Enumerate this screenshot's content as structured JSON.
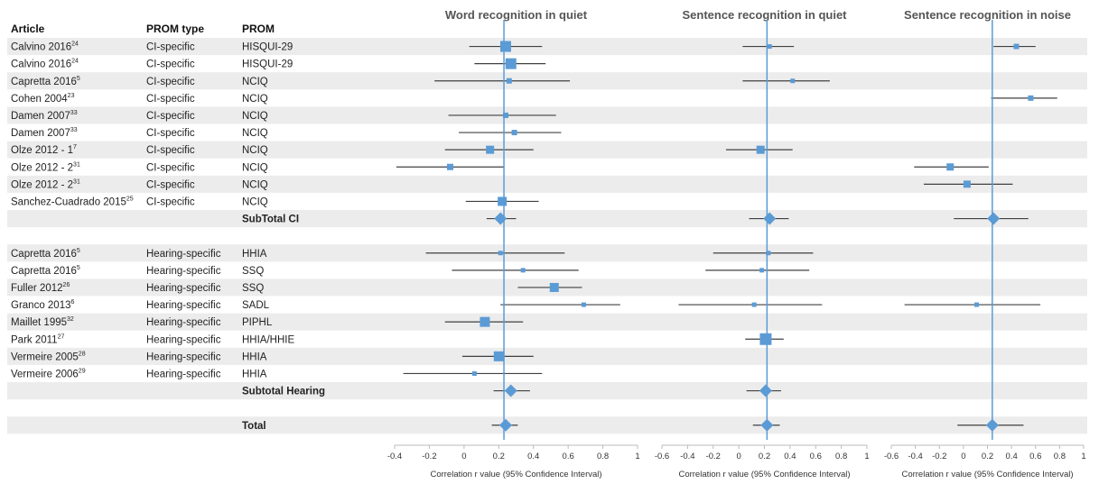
{
  "columns": {
    "article": "Article",
    "prom_type": "PROM type",
    "prom": "PROM"
  },
  "rows": [
    {
      "kind": "study",
      "article": "Calvino 2016",
      "sup": "24",
      "type": "CI-specific",
      "prom": "HISQUI-29"
    },
    {
      "kind": "study",
      "article": "Calvino 2016",
      "sup": "24",
      "type": "CI-specific",
      "prom": "HISQUI-29"
    },
    {
      "kind": "study",
      "article": "Capretta 2016",
      "sup": "5",
      "type": "CI-specific",
      "prom": "NCIQ"
    },
    {
      "kind": "study",
      "article": "Cohen 2004",
      "sup": "23",
      "type": "CI-specific",
      "prom": "NCIQ"
    },
    {
      "kind": "study",
      "article": "Damen 2007",
      "sup": "33",
      "type": "CI-specific",
      "prom": "NCIQ"
    },
    {
      "kind": "study",
      "article": "Damen 2007",
      "sup": "33",
      "type": "CI-specific",
      "prom": "NCIQ"
    },
    {
      "kind": "study",
      "article": "Olze 2012 - 1",
      "sup": "7",
      "type": "CI-specific",
      "prom": "NCIQ"
    },
    {
      "kind": "study",
      "article": "Olze 2012 - 2",
      "sup": "31",
      "type": "CI-specific",
      "prom": "NCIQ"
    },
    {
      "kind": "study",
      "article": "Olze 2012 - 2",
      "sup": "31",
      "type": "CI-specific",
      "prom": "NCIQ"
    },
    {
      "kind": "study",
      "article": "Sanchez-Cuadrado 2015",
      "sup": "25",
      "type": "CI-specific",
      "prom": "NCIQ"
    },
    {
      "kind": "subtotal",
      "article": "",
      "sup": "",
      "type": "",
      "prom": "SubTotal CI"
    },
    {
      "kind": "blank",
      "article": "",
      "sup": "",
      "type": "",
      "prom": ""
    },
    {
      "kind": "study",
      "article": "Capretta 2016",
      "sup": "5",
      "type": "Hearing-specific",
      "prom": "HHIA"
    },
    {
      "kind": "study",
      "article": "Capretta 2016",
      "sup": "5",
      "type": "Hearing-specific",
      "prom": "SSQ"
    },
    {
      "kind": "study",
      "article": "Fuller 2012",
      "sup": "26",
      "type": "Hearing-specific",
      "prom": "SSQ"
    },
    {
      "kind": "study",
      "article": "Granco 2013",
      "sup": "6",
      "type": "Hearing-specific",
      "prom": "SADL"
    },
    {
      "kind": "study",
      "article": "Maillet 1995",
      "sup": "32",
      "type": "Hearing-specific",
      "prom": "PIPHL"
    },
    {
      "kind": "study",
      "article": "Park 2011",
      "sup": "27",
      "type": "Hearing-specific",
      "prom": "HHIA/HHIE"
    },
    {
      "kind": "study",
      "article": "Vermeire 2005",
      "sup": "28",
      "type": "Hearing-specific",
      "prom": "HHIA"
    },
    {
      "kind": "study",
      "article": "Vermeire 2006",
      "sup": "29",
      "type": "Hearing-specific",
      "prom": "HHIA"
    },
    {
      "kind": "subtotal",
      "article": "",
      "sup": "",
      "type": "",
      "prom": "Subtotal Hearing"
    },
    {
      "kind": "blank",
      "article": "",
      "sup": "",
      "type": "",
      "prom": ""
    },
    {
      "kind": "subtotal",
      "article": "",
      "sup": "",
      "type": "",
      "prom": "Total"
    }
  ],
  "chart_data": [
    {
      "type": "scatter",
      "title": "Word recognition in quiet",
      "xlabel": "Correlation r value (95% Confidence Interval)",
      "xlim": [
        -0.4,
        1
      ],
      "ticks": [
        "-0.4",
        "-0.2",
        "0",
        "0.2",
        "0.4",
        "0.6",
        "0.8",
        "1"
      ],
      "reference_line": 0.23,
      "color": "#5b9bd5",
      "points": [
        {
          "row": 0,
          "est": 0.24,
          "lo": 0.03,
          "hi": 0.45,
          "w": 12
        },
        {
          "row": 1,
          "est": 0.27,
          "lo": 0.06,
          "hi": 0.47,
          "w": 12
        },
        {
          "row": 2,
          "est": 0.26,
          "lo": -0.17,
          "hi": 0.61,
          "w": 6
        },
        {
          "row": 4,
          "est": 0.24,
          "lo": -0.09,
          "hi": 0.53,
          "w": 6
        },
        {
          "row": 5,
          "est": 0.29,
          "lo": -0.03,
          "hi": 0.56,
          "w": 6
        },
        {
          "row": 6,
          "est": 0.15,
          "lo": -0.11,
          "hi": 0.4,
          "w": 9
        },
        {
          "row": 7,
          "est": -0.08,
          "lo": -0.39,
          "hi": 0.23,
          "w": 7
        },
        {
          "row": 9,
          "est": 0.22,
          "lo": 0.01,
          "hi": 0.43,
          "w": 10
        },
        {
          "row": 10,
          "est": 0.21,
          "lo": 0.13,
          "hi": 0.3,
          "diamond": true
        },
        {
          "row": 12,
          "est": 0.21,
          "lo": -0.22,
          "hi": 0.58,
          "w": 5
        },
        {
          "row": 13,
          "est": 0.34,
          "lo": -0.07,
          "hi": 0.66,
          "w": 5
        },
        {
          "row": 14,
          "est": 0.52,
          "lo": 0.31,
          "hi": 0.68,
          "w": 10
        },
        {
          "row": 15,
          "est": 0.69,
          "lo": 0.21,
          "hi": 0.9,
          "w": 5
        },
        {
          "row": 16,
          "est": 0.12,
          "lo": -0.11,
          "hi": 0.34,
          "w": 11
        },
        {
          "row": 18,
          "est": 0.2,
          "lo": -0.01,
          "hi": 0.4,
          "w": 11
        },
        {
          "row": 19,
          "est": 0.06,
          "lo": -0.35,
          "hi": 0.45,
          "w": 5
        },
        {
          "row": 20,
          "est": 0.27,
          "lo": 0.17,
          "hi": 0.38,
          "diamond": true
        },
        {
          "row": 22,
          "est": 0.24,
          "lo": 0.16,
          "hi": 0.31,
          "diamond": true
        }
      ]
    },
    {
      "type": "scatter",
      "title": "Sentence recognition in quiet",
      "xlabel": "Correlation r value (95% Confidence Interval)",
      "xlim": [
        -0.6,
        1
      ],
      "ticks": [
        "-0.6",
        "-0.4",
        "-0.2",
        "0",
        "0.2",
        "0.4",
        "0.6",
        "0.8",
        "1"
      ],
      "reference_line": 0.22,
      "color": "#5b9bd5",
      "points": [
        {
          "row": 0,
          "est": 0.24,
          "lo": 0.03,
          "hi": 0.43,
          "w": 5
        },
        {
          "row": 2,
          "est": 0.42,
          "lo": 0.03,
          "hi": 0.71,
          "w": 5
        },
        {
          "row": 6,
          "est": 0.17,
          "lo": -0.1,
          "hi": 0.42,
          "w": 9
        },
        {
          "row": 10,
          "est": 0.24,
          "lo": 0.08,
          "hi": 0.39,
          "diamond": true
        },
        {
          "row": 12,
          "est": 0.23,
          "lo": -0.2,
          "hi": 0.58,
          "w": 5
        },
        {
          "row": 13,
          "est": 0.18,
          "lo": -0.26,
          "hi": 0.55,
          "w": 5
        },
        {
          "row": 15,
          "est": 0.12,
          "lo": -0.47,
          "hi": 0.65,
          "w": 5
        },
        {
          "row": 17,
          "est": 0.21,
          "lo": 0.05,
          "hi": 0.35,
          "w": 13
        },
        {
          "row": 20,
          "est": 0.21,
          "lo": 0.06,
          "hi": 0.33,
          "diamond": true
        },
        {
          "row": 22,
          "est": 0.22,
          "lo": 0.11,
          "hi": 0.32,
          "diamond": true
        }
      ]
    },
    {
      "type": "scatter",
      "title": "Sentence recognition in noise",
      "xlabel": "Correlation r value (95% Confidence Interval)",
      "xlim": [
        -0.6,
        1
      ],
      "ticks": [
        "-0.6",
        "-0.4",
        "-0.2",
        "0",
        "0.2",
        "0.4",
        "0.6",
        "0.8",
        "1"
      ],
      "reference_line": 0.24,
      "color": "#5b9bd5",
      "points": [
        {
          "row": 0,
          "est": 0.44,
          "lo": 0.25,
          "hi": 0.6,
          "w": 6
        },
        {
          "row": 3,
          "est": 0.56,
          "lo": 0.23,
          "hi": 0.78,
          "w": 6
        },
        {
          "row": 7,
          "est": -0.11,
          "lo": -0.41,
          "hi": 0.21,
          "w": 8
        },
        {
          "row": 8,
          "est": 0.03,
          "lo": -0.33,
          "hi": 0.41,
          "w": 8
        },
        {
          "row": 10,
          "est": 0.25,
          "lo": -0.08,
          "hi": 0.54,
          "diamond": true
        },
        {
          "row": 15,
          "est": 0.11,
          "lo": -0.49,
          "hi": 0.64,
          "w": 5
        },
        {
          "row": 22,
          "est": 0.24,
          "lo": -0.05,
          "hi": 0.5,
          "diamond": true
        }
      ]
    }
  ]
}
